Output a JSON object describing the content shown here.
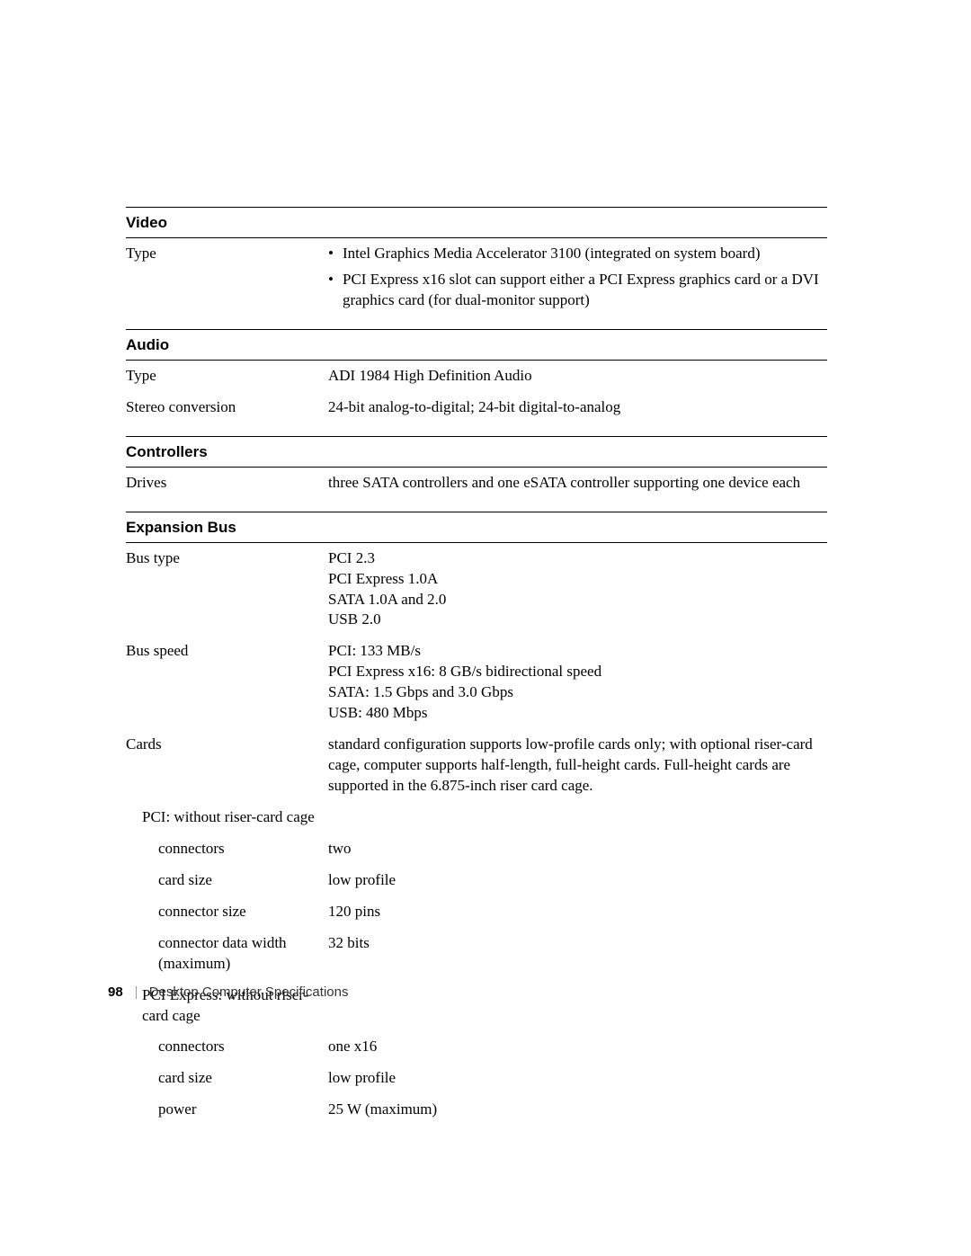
{
  "colors": {
    "text": "#000000",
    "background": "#ffffff",
    "border": "#000000",
    "footerDivider": "#999999",
    "footerText": "#333333"
  },
  "typography": {
    "serifFamily": "Georgia, 'Times New Roman', serif",
    "sansFamily": "Arial, Helvetica, sans-serif",
    "bodyFontSize": 17,
    "headerFontSize": 17,
    "footerFontSize": 15
  },
  "sections": {
    "video": {
      "title": "Video",
      "rows": {
        "type": {
          "label": "Type",
          "bullets": [
            "Intel Graphics Media Accelerator 3100 (integrated on system board)",
            "PCI Express x16 slot can support either a PCI Express graphics card or a DVI graphics card (for dual-monitor support)"
          ]
        }
      }
    },
    "audio": {
      "title": "Audio",
      "rows": {
        "type": {
          "label": "Type",
          "value": "ADI 1984 High Definition Audio"
        },
        "stereo": {
          "label": "Stereo conversion",
          "value": "24-bit analog-to-digital; 24-bit digital-to-analog"
        }
      }
    },
    "controllers": {
      "title": "Controllers",
      "rows": {
        "drives": {
          "label": "Drives",
          "value": "three SATA controllers and one eSATA controller supporting one device each"
        }
      }
    },
    "expansion": {
      "title": "Expansion Bus",
      "rows": {
        "busType": {
          "label": "Bus type",
          "lines": [
            "PCI 2.3",
            "PCI Express 1.0A",
            "SATA 1.0A and 2.0",
            "USB 2.0"
          ]
        },
        "busSpeed": {
          "label": "Bus speed",
          "lines": [
            "PCI: 133 MB/s",
            "PCI Express x16: 8 GB/s bidirectional speed",
            "SATA: 1.5 Gbps and 3.0 Gbps",
            "USB: 480 Mbps"
          ]
        },
        "cards": {
          "label": "Cards",
          "value": "standard configuration supports low-profile cards only; with optional riser-card cage, computer supports half-length, full-height cards. Full-height cards are supported in the 6.875-inch riser card cage."
        },
        "pciNoRiser": {
          "label": "PCI: without riser-card cage"
        },
        "pciConnectors": {
          "label": "connectors",
          "value": "two"
        },
        "pciCardSize": {
          "label": "card size",
          "value": "low profile"
        },
        "pciConnectorSize": {
          "label": "connector size",
          "value": "120 pins"
        },
        "pciDataWidth": {
          "label": "connector data width (maximum)",
          "value": "32 bits"
        },
        "pcieNoRiser": {
          "label": "PCI Express: without riser-card cage"
        },
        "pcieConnectors": {
          "label": "connectors",
          "value": "one x16"
        },
        "pcieCardSize": {
          "label": "card size",
          "value": "low profile"
        },
        "pciePower": {
          "label": "power",
          "value": "25 W (maximum)"
        }
      }
    }
  },
  "footer": {
    "pageNumber": "98",
    "title": "Desktop Computer Specifications"
  }
}
